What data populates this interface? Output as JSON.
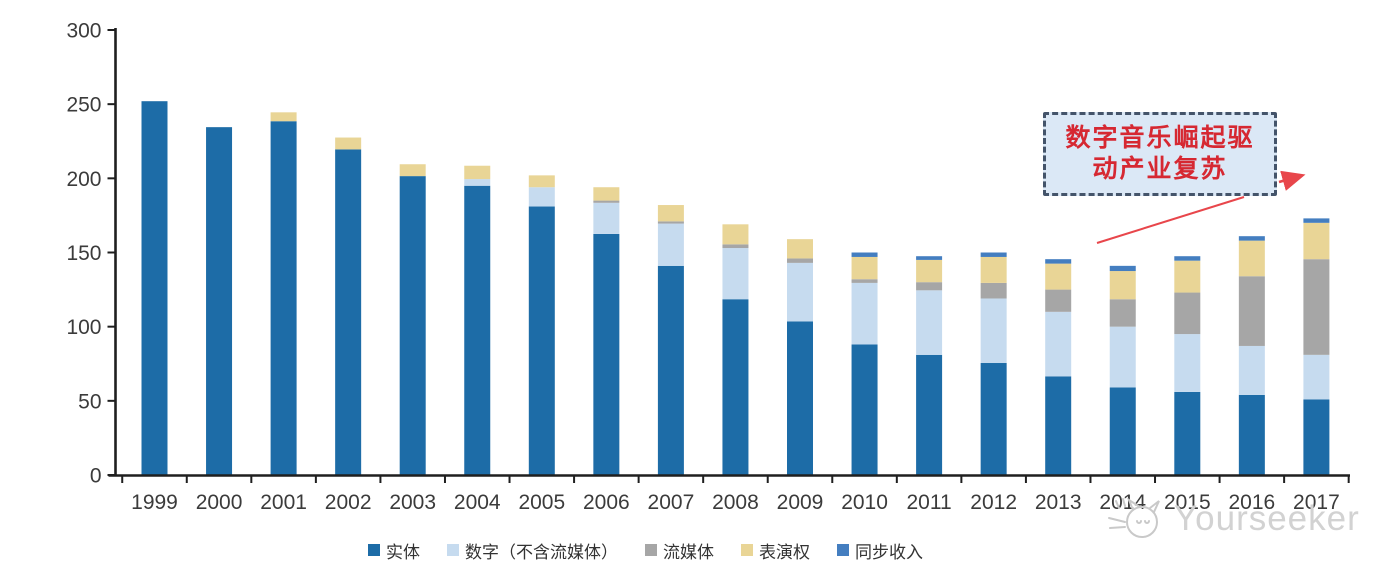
{
  "annotation": {
    "line1": "数字音乐崛起驱",
    "line2": "动产业复苏"
  },
  "watermark": {
    "text": "Yourseeker"
  },
  "colors": {
    "physical": "#1D6CA7",
    "digital": "#C6DBEF",
    "streaming": "#A6A6A6",
    "performance": "#E9D596",
    "sync": "#447EC0",
    "axis": "#1f1f1f",
    "tick_label": "#3b3b3b",
    "annotation_border": "#44546A",
    "annotation_fill": "#DBE8F6",
    "annotation_text": "#D62832",
    "arrow_red": "#E8464B",
    "watermark_gray": "#cccccc"
  },
  "chart_data": {
    "type": "bar",
    "stacked": true,
    "title": "",
    "xlabel": "",
    "ylabel": "",
    "ylim": [
      0,
      300
    ],
    "yticks": [
      0,
      50,
      100,
      150,
      200,
      250,
      300
    ],
    "grid": false,
    "legend_position": "bottom",
    "categories": [
      "1999",
      "2000",
      "2001",
      "2002",
      "2003",
      "2004",
      "2005",
      "2006",
      "2007",
      "2008",
      "2009",
      "2010",
      "2011",
      "2012",
      "2013",
      "2014",
      "2015",
      "2016",
      "2017"
    ],
    "series": [
      {
        "name": "实体",
        "color": "#1D6CA7",
        "values": [
          252,
          234.5,
          238.5,
          219.5,
          201.5,
          195,
          181,
          162.5,
          141,
          118.5,
          103.5,
          88,
          81,
          75.5,
          66.5,
          59,
          56,
          54,
          51
        ]
      },
      {
        "name": "数字（不含流媒体）",
        "color": "#C6DBEF",
        "values": [
          0,
          0,
          0,
          0,
          0,
          4.5,
          13,
          21,
          28.5,
          34.5,
          39.5,
          41.5,
          43.5,
          43.5,
          43.5,
          41,
          39,
          33,
          30
        ]
      },
      {
        "name": "流媒体",
        "color": "#A6A6A6",
        "values": [
          0,
          0,
          0,
          0,
          0,
          0,
          0,
          1.5,
          1.5,
          2.5,
          3,
          2.5,
          5.5,
          10.5,
          15,
          18.5,
          28,
          47,
          64.5
        ]
      },
      {
        "name": "表演权",
        "color": "#E9D596",
        "values": [
          0,
          0,
          6,
          8,
          8,
          9,
          8,
          9,
          11,
          13.5,
          13,
          15,
          15,
          17.5,
          17.5,
          19,
          21.5,
          24,
          24.5
        ]
      },
      {
        "name": "同步收入",
        "color": "#447EC0",
        "values": [
          0,
          0,
          0,
          0,
          0,
          0,
          0,
          0,
          0,
          0,
          0,
          3,
          2.5,
          3,
          3,
          3.5,
          3,
          3,
          3
        ]
      }
    ]
  }
}
